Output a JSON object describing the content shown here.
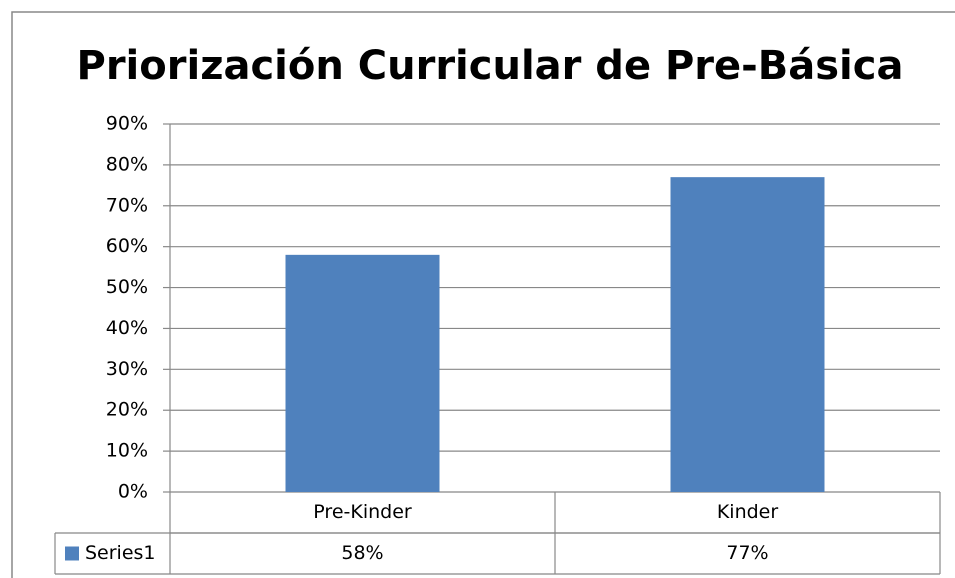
{
  "chart_data": {
    "type": "bar",
    "title": "Priorización Curricular de Pre-Básica",
    "categories": [
      "Pre-Kinder",
      "Kinder"
    ],
    "series": [
      {
        "name": "Series1",
        "color": "#4f81bd",
        "values": [
          58,
          77
        ],
        "value_labels": [
          "58%",
          "77%"
        ]
      }
    ],
    "ylim": [
      0,
      90
    ],
    "yticks": [
      {
        "value": 0,
        "label": "0%"
      },
      {
        "value": 10,
        "label": "10%"
      },
      {
        "value": 20,
        "label": "20%"
      },
      {
        "value": 30,
        "label": "30%"
      },
      {
        "value": 40,
        "label": "40%"
      },
      {
        "value": 50,
        "label": "50%"
      },
      {
        "value": 60,
        "label": "60%"
      },
      {
        "value": 70,
        "label": "70%"
      },
      {
        "value": 80,
        "label": "80%"
      },
      {
        "value": 90,
        "label": "90%"
      }
    ],
    "grid": true,
    "legend": "data-table"
  }
}
